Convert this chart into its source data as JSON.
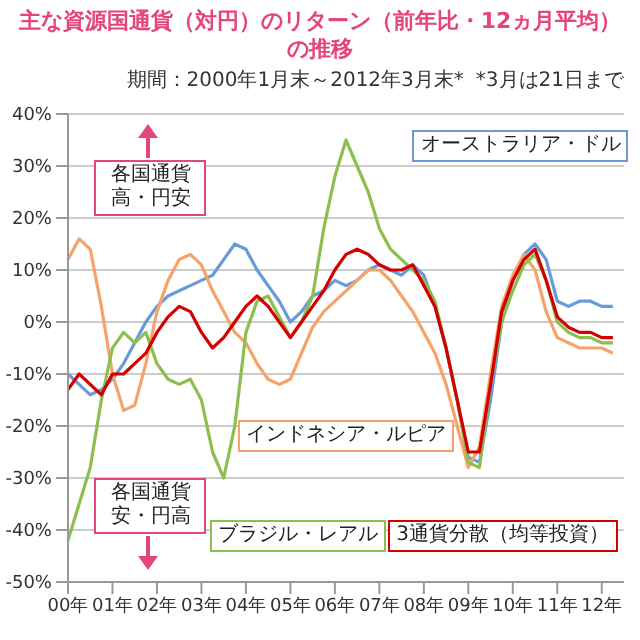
{
  "chart_data": {
    "type": "line",
    "title": "主な資源国通貨（対円）のリターン（前年比・12ヵ月平均）の推移",
    "subtitle": "期間：2000年1月末～2012年3月末*",
    "annotations": [
      "各国通貨高・円安",
      "各国通貨安・円高",
      "*3月は21日まで"
    ],
    "categories": [
      "00年",
      null,
      null,
      null,
      "01年",
      null,
      null,
      null,
      "02年",
      null,
      null,
      null,
      "03年",
      null,
      null,
      null,
      "04年",
      null,
      null,
      null,
      "05年",
      null,
      null,
      null,
      "06年",
      null,
      null,
      null,
      "07年",
      null,
      null,
      null,
      "08年",
      null,
      null,
      null,
      "09年",
      null,
      null,
      null,
      "10年",
      null,
      null,
      null,
      "11年",
      null,
      null,
      null,
      "12年",
      null
    ],
    "series": [
      {
        "name": "オーストラリア・ドル",
        "color": "#6a9bd8",
        "values": [
          -10,
          -12,
          -14,
          -13,
          -11,
          -8,
          -4,
          0,
          3,
          5,
          6,
          7,
          8,
          9,
          12,
          15,
          14,
          10,
          7,
          4,
          0,
          2,
          5,
          6,
          8,
          7,
          8,
          10,
          11,
          10,
          9,
          11,
          9,
          3,
          -5,
          -15,
          -26,
          -27,
          -15,
          0,
          8,
          13,
          15,
          12,
          4,
          3,
          4,
          4,
          3,
          3
        ]
      },
      {
        "name": "インドネシア・ルピア",
        "color": "#f5a36a",
        "values": [
          12,
          16,
          14,
          3,
          -10,
          -17,
          -16,
          -8,
          2,
          8,
          12,
          13,
          11,
          6,
          2,
          -2,
          -4,
          -8,
          -11,
          -12,
          -11,
          -6,
          -1,
          2,
          4,
          6,
          8,
          10,
          10,
          8,
          5,
          2,
          -2,
          -6,
          -12,
          -20,
          -28,
          -24,
          -10,
          3,
          9,
          13,
          10,
          2,
          -3,
          -4,
          -5,
          -5,
          -5,
          -6
        ]
      },
      {
        "name": "ブラジル・レアル",
        "color": "#8cbf4f",
        "values": [
          -42,
          -35,
          -28,
          -15,
          -5,
          -2,
          -4,
          -2,
          -8,
          -11,
          -12,
          -11,
          -15,
          -25,
          -30,
          -20,
          -2,
          4,
          5,
          1,
          -3,
          0,
          5,
          18,
          28,
          35,
          30,
          25,
          18,
          14,
          12,
          10,
          8,
          4,
          -5,
          -15,
          -27,
          -28,
          -12,
          0,
          6,
          11,
          13,
          8,
          0,
          -2,
          -3,
          -3,
          -4,
          -4
        ]
      },
      {
        "name": "3通貨分散（均等投資）",
        "color": "#d40000",
        "values": [
          -13,
          -10,
          -12,
          -14,
          -10,
          -10,
          -8,
          -6,
          -2,
          1,
          3,
          2,
          -2,
          -5,
          -3,
          0,
          3,
          5,
          3,
          0,
          -3,
          0,
          3,
          6,
          10,
          13,
          14,
          13,
          11,
          10,
          10,
          11,
          7,
          3,
          -5,
          -15,
          -25,
          -25,
          -12,
          2,
          8,
          12,
          14,
          8,
          1,
          -1,
          -2,
          -2,
          -3,
          -3
        ]
      }
    ],
    "ylim": [
      -50,
      40
    ],
    "yticks": [
      {
        "value": -50,
        "label": "-50%"
      },
      {
        "value": -40,
        "label": "-40%"
      },
      {
        "value": -30,
        "label": "-30%"
      },
      {
        "value": -20,
        "label": "-20%"
      },
      {
        "value": -10,
        "label": "-10%"
      },
      {
        "value": 0,
        "label": "0%"
      },
      {
        "value": 10,
        "label": "10%"
      },
      {
        "value": 20,
        "label": "20%"
      },
      {
        "value": 30,
        "label": "30%"
      },
      {
        "value": 40,
        "label": "40%"
      }
    ],
    "grid": "y",
    "legend": false,
    "marker": "none",
    "line_style": "solid"
  }
}
